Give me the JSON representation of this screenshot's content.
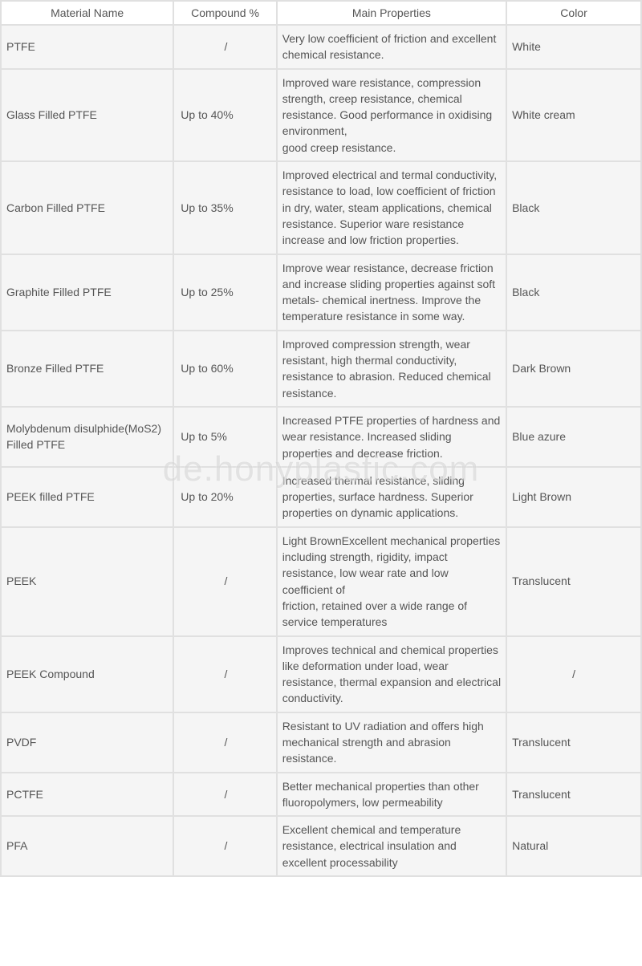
{
  "table": {
    "columns": [
      "Material Name",
      "Compound %",
      "Main Properties",
      "Color"
    ],
    "column_widths_pct": [
      27,
      16,
      36,
      21
    ],
    "header_bg": "#ffffff",
    "cell_bg": "#f5f5f5",
    "gap_color": "#e0e0e0",
    "text_color": "#555555",
    "font_size_pt": 11,
    "rows": [
      {
        "name": "PTFE",
        "compound": "/",
        "compound_align": "center",
        "props": "Very low coefficient of friction and excellent chemical resistance.",
        "color": "White",
        "color_align": "left"
      },
      {
        "name": "Glass Filled PTFE",
        "compound": "Up to 40%",
        "compound_align": "left",
        "props": "Improved ware resistance, compression strength, creep resistance, chemical resistance. Good performance in oxidising environment,\ngood creep resistance.",
        "color": "White cream",
        "color_align": "left"
      },
      {
        "name": "Carbon Filled PTFE",
        "compound": "Up to 35%",
        "compound_align": "left",
        "props": "Improved electrical and termal conductivity, resistance to load, low coefficient of friction in dry, water, steam applications, chemical resistance. Superior ware resistance increase and low friction properties.",
        "color": "Black",
        "color_align": "left"
      },
      {
        "name": "Graphite Filled PTFE",
        "compound": "Up to 25%",
        "compound_align": "left",
        "props": "Improve wear resistance, decrease friction and increase sliding properties against soft metals- chemical inertness. Improve the\ntemperature resistance in some way.",
        "color": "Black",
        "color_align": "left"
      },
      {
        "name": "Bronze Filled PTFE",
        "compound": "Up to 60%",
        "compound_align": "left",
        "props": "Improved compression strength, wear resistant, high thermal conductivity, resistance to abrasion. Reduced chemical resistance.",
        "color": "Dark Brown",
        "color_align": "left"
      },
      {
        "name": "Molybdenum disulphide(MoS2) Filled PTFE",
        "compound": "Up to 5%",
        "compound_align": "left",
        "props": "Increased PTFE properties of hardness and wear resistance. Increased sliding properties and decrease friction.",
        "color": "Blue azure",
        "color_align": "left"
      },
      {
        "name": "PEEK filled PTFE",
        "compound": "Up to 20%",
        "compound_align": "left",
        "props": "Increased thermal resistance, sliding properties, surface hardness. Superior properties on dynamic applications.",
        "color": "Light Brown",
        "color_align": "left"
      },
      {
        "name": "PEEK",
        "compound": "/",
        "compound_align": "center",
        "props": "Light BrownExcellent mechanical properties including strength, rigidity, impact resistance, low wear rate and low coefficient of\nfriction, retained over a wide range of service temperatures",
        "color": "Translucent",
        "color_align": "left"
      },
      {
        "name": "PEEK Compound",
        "compound": "/",
        "compound_align": "center",
        "props": "Improves technical and chemical properties like deformation under load, wear resistance, thermal expansion and electrical\nconductivity.",
        "color": "/",
        "color_align": "center"
      },
      {
        "name": "PVDF",
        "compound": "/",
        "compound_align": "center",
        "props": "Resistant to UV radiation and offers high mechanical strength and abrasion resistance.",
        "color": "Translucent",
        "color_align": "left"
      },
      {
        "name": "PCTFE",
        "compound": "/",
        "compound_align": "center",
        "props": "Better mechanical properties than other fluoropolymers, low permeability",
        "color": "Translucent",
        "color_align": "left"
      },
      {
        "name": "PFA",
        "compound": "/",
        "compound_align": "center",
        "props": "Excellent chemical and temperature resistance, electrical insulation and excellent processability",
        "color": "Natural",
        "color_align": "left"
      }
    ]
  },
  "watermark": "de.honyplastic.com"
}
